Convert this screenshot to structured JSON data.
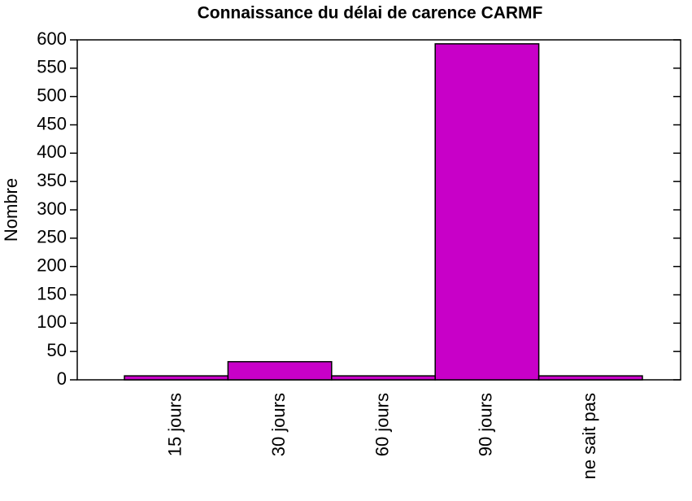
{
  "chart_data": {
    "type": "bar",
    "title": "Connaissance du délai de carence CARMF",
    "y_label": "Nombre",
    "categories": [
      "15 jours",
      "30 jours",
      "60 jours",
      "90 jours",
      "ne sait pas"
    ],
    "values": [
      7,
      32,
      7,
      593,
      7
    ],
    "color": "#c800c8",
    "ylim": [
      0,
      600
    ],
    "yticks": [
      0,
      50,
      100,
      150,
      200,
      250,
      300,
      350,
      400,
      450,
      500,
      550,
      600
    ]
  }
}
